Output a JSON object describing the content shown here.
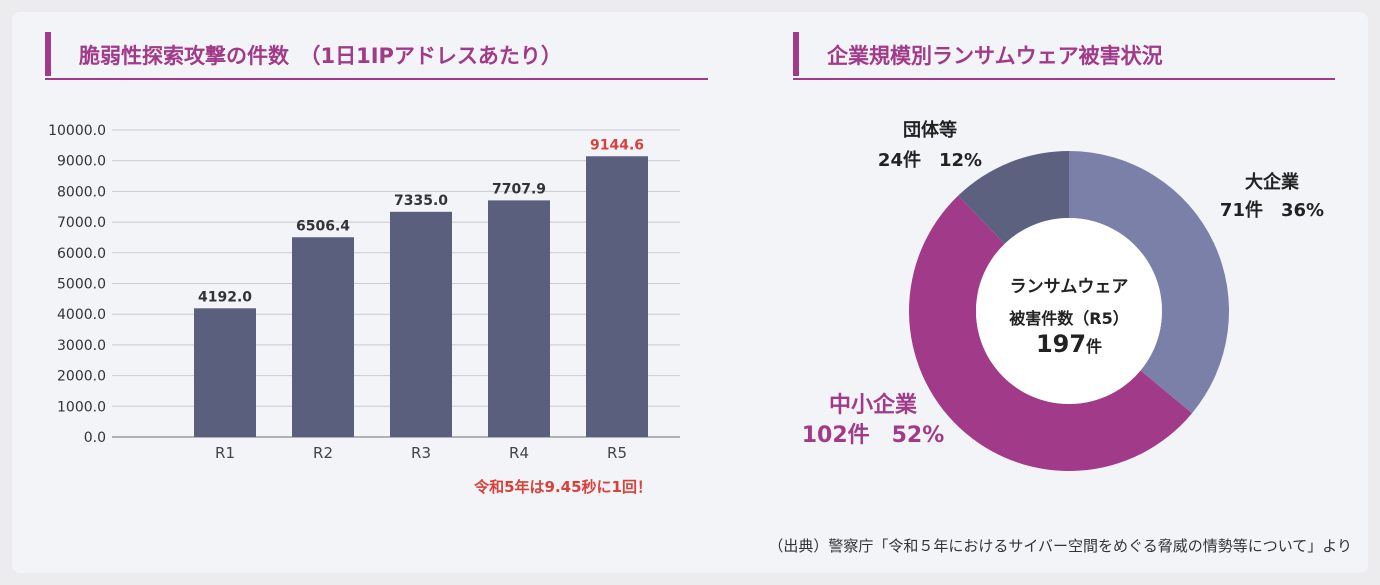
{
  "colors": {
    "accent": "#a23a8a",
    "bar": "#5a5f7d",
    "highlight": "#d8403a",
    "donut_large": "#7a80a8",
    "donut_group": "#5d6180",
    "donut_sme": "#a23a8a"
  },
  "left_title": "脆弱性探索攻撃の件数　（1日1IPアドレスあたり）",
  "right_title": "企業規模別ランサムウェア被害状況",
  "bar_note": "令和5年は9.45秒に1回！",
  "source": "（出典）警察庁「令和５年におけるサイバー空間をめぐる脅威の情勢等について」より",
  "chart_data": [
    {
      "type": "bar",
      "categories": [
        "R1",
        "R2",
        "R3",
        "R4",
        "R5"
      ],
      "values": [
        4192.0,
        6506.4,
        7335.0,
        7707.9,
        9144.6
      ],
      "value_labels": [
        "4192.0",
        "6506.4",
        "7335.0",
        "7707.9",
        "9144.6"
      ],
      "highlight_index": 4,
      "ylim": [
        0,
        10000
      ],
      "yticks": [
        "0.0",
        "1000.0",
        "2000.0",
        "3000.0",
        "4000.0",
        "5000.0",
        "6000.0",
        "7000.0",
        "8000.0",
        "9000.0",
        "10000.0"
      ],
      "grid": true
    },
    {
      "type": "pie",
      "donut": true,
      "slices": [
        {
          "name": "大企業",
          "count": "71件",
          "pct": "36%",
          "value": 71,
          "color": "#7a80a8"
        },
        {
          "name": "中小企業",
          "count": "102件",
          "pct": "52%",
          "value": 102,
          "color": "#a23a8a"
        },
        {
          "name": "団体等",
          "count": "24件",
          "pct": "12%",
          "value": 24,
          "color": "#5d6180"
        }
      ],
      "center": {
        "line1": "ランサムウェア",
        "line2": "被害件数（R5）",
        "total": "197",
        "unit": "件"
      }
    }
  ]
}
